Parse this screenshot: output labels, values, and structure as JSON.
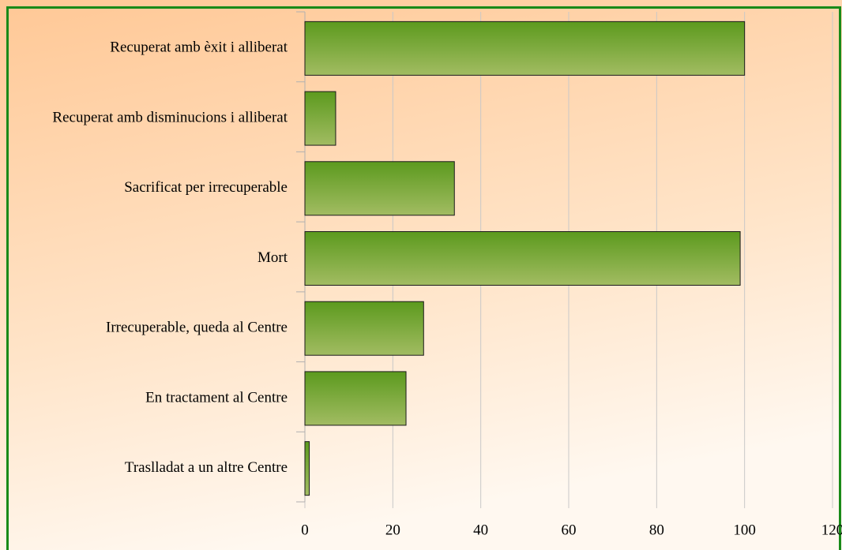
{
  "chart_data": {
    "type": "bar",
    "orientation": "horizontal",
    "categories": [
      "Recuperat amb èxit i alliberat",
      "Recuperat amb disminucions i alliberat",
      "Sacrificat per irrecuperable",
      "Mort",
      "Irrecuperable, queda al Centre",
      "En tractament al Centre",
      "Traslladat a un altre Centre"
    ],
    "values": [
      100,
      7,
      34,
      99,
      27,
      23,
      1
    ],
    "color": "#6fa52c",
    "xlim": [
      0,
      120
    ],
    "xticks": [
      0,
      20,
      40,
      60,
      80,
      100,
      120
    ],
    "grid": true
  }
}
